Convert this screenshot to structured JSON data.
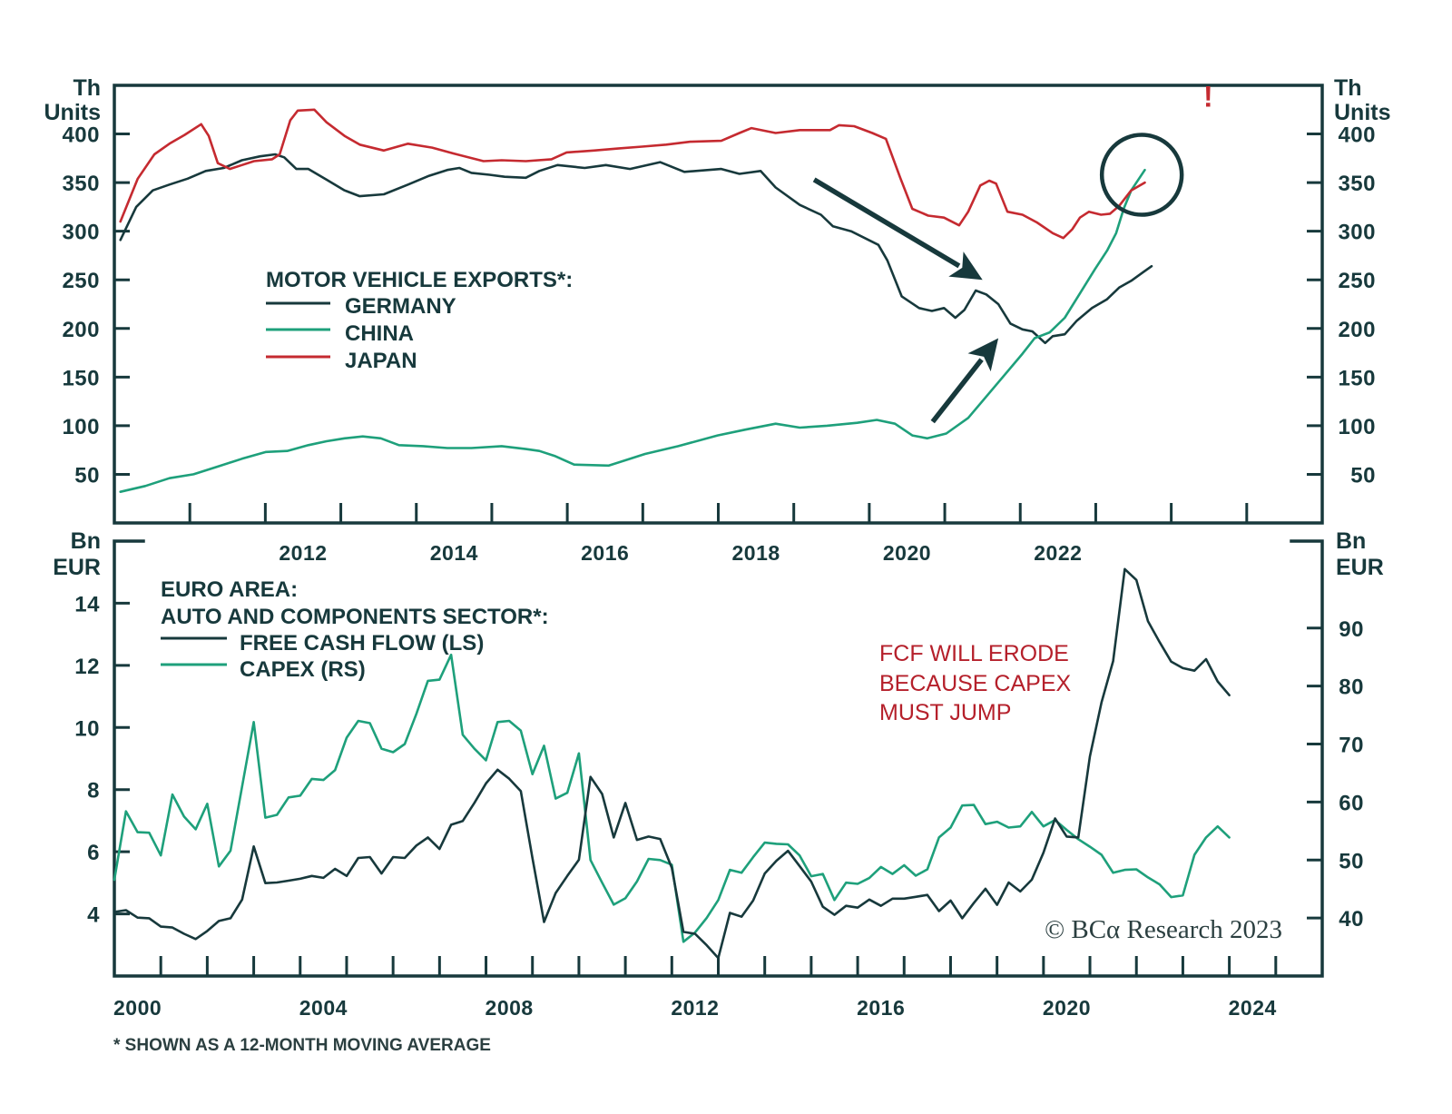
{
  "chart_data": [
    {
      "type": "line",
      "panel": "top",
      "title": "MOTOR VEHICLE EXPORTS*:",
      "ylabel_left": [
        "Th",
        "Units"
      ],
      "ylabel_right": [
        "Th",
        "Units"
      ],
      "xlabel": "",
      "xlim": [
        2010,
        2026
      ],
      "ylim": [
        0,
        450
      ],
      "yticks": [
        50,
        100,
        150,
        200,
        250,
        300,
        350,
        400
      ],
      "xticks": [
        2011,
        2012,
        2013,
        2014,
        2015,
        2016,
        2017,
        2018,
        2019,
        2020,
        2021,
        2022,
        2023,
        2024,
        2025
      ],
      "xticklabels": [
        "2012",
        "2014",
        "2016",
        "2018",
        "2020",
        "2022"
      ],
      "grid": false,
      "legend": "center-left",
      "series": [
        {
          "name": "GERMANY",
          "color": "#17393c",
          "points": [
            [
              2010.08,
              291
            ],
            [
              2010.29,
              325
            ],
            [
              2010.51,
              342
            ],
            [
              2010.73,
              348
            ],
            [
              2010.97,
              354
            ],
            [
              2011.21,
              362
            ],
            [
              2011.45,
              365
            ],
            [
              2011.69,
              373
            ],
            [
              2011.93,
              377
            ],
            [
              2012.13,
              379
            ],
            [
              2012.25,
              376
            ],
            [
              2012.41,
              364
            ],
            [
              2012.57,
              364
            ],
            [
              2012.81,
              353
            ],
            [
              2013.05,
              342
            ],
            [
              2013.25,
              336
            ],
            [
              2013.57,
              338
            ],
            [
              2013.89,
              348
            ],
            [
              2014.17,
              357
            ],
            [
              2014.41,
              363
            ],
            [
              2014.57,
              365
            ],
            [
              2014.73,
              360
            ],
            [
              2014.97,
              358
            ],
            [
              2015.17,
              356
            ],
            [
              2015.45,
              355
            ],
            [
              2015.63,
              362
            ],
            [
              2015.87,
              368
            ],
            [
              2016.23,
              365
            ],
            [
              2016.51,
              368
            ],
            [
              2016.83,
              364
            ],
            [
              2017.23,
              371
            ],
            [
              2017.55,
              361
            ],
            [
              2018.04,
              364
            ],
            [
              2018.28,
              359
            ],
            [
              2018.56,
              362
            ],
            [
              2018.76,
              345
            ],
            [
              2019.08,
              327
            ],
            [
              2019.36,
              317
            ],
            [
              2019.52,
              305
            ],
            [
              2019.76,
              300
            ],
            [
              2020.12,
              286
            ],
            [
              2020.24,
              270
            ],
            [
              2020.43,
              233
            ],
            [
              2020.66,
              221
            ],
            [
              2020.83,
              218
            ],
            [
              2020.99,
              221
            ],
            [
              2021.14,
              211
            ],
            [
              2021.26,
              219
            ],
            [
              2021.41,
              239
            ],
            [
              2021.55,
              235
            ],
            [
              2021.71,
              225
            ],
            [
              2021.87,
              205
            ],
            [
              2022.03,
              199
            ],
            [
              2022.16,
              197
            ],
            [
              2022.33,
              185
            ],
            [
              2022.43,
              192
            ],
            [
              2022.59,
              194
            ],
            [
              2022.75,
              208
            ],
            [
              2022.95,
              221
            ],
            [
              2023.15,
              230
            ],
            [
              2023.31,
              242
            ],
            [
              2023.47,
              249
            ],
            [
              2023.63,
              258
            ],
            [
              2023.74,
              264
            ]
          ]
        },
        {
          "name": "CHINA",
          "color": "#1ea07b",
          "points": [
            [
              2010.08,
              32
            ],
            [
              2010.41,
              38
            ],
            [
              2010.73,
              46
            ],
            [
              2011.05,
              50
            ],
            [
              2011.37,
              58
            ],
            [
              2011.69,
              66
            ],
            [
              2012.01,
              73
            ],
            [
              2012.29,
              74
            ],
            [
              2012.57,
              80
            ],
            [
              2012.81,
              84
            ],
            [
              2013.05,
              87
            ],
            [
              2013.29,
              89
            ],
            [
              2013.53,
              87
            ],
            [
              2013.77,
              80
            ],
            [
              2014.09,
              79
            ],
            [
              2014.41,
              77
            ],
            [
              2014.73,
              77
            ],
            [
              2015.13,
              79
            ],
            [
              2015.45,
              76
            ],
            [
              2015.63,
              74
            ],
            [
              2015.83,
              69
            ],
            [
              2016.09,
              60
            ],
            [
              2016.55,
              59
            ],
            [
              2017.03,
              71
            ],
            [
              2017.47,
              79
            ],
            [
              2017.99,
              90
            ],
            [
              2018.36,
              96
            ],
            [
              2018.76,
              102
            ],
            [
              2019.08,
              98
            ],
            [
              2019.44,
              100
            ],
            [
              2019.84,
              103
            ],
            [
              2020.1,
              106
            ],
            [
              2020.34,
              102
            ],
            [
              2020.57,
              90
            ],
            [
              2020.77,
              87
            ],
            [
              2021.02,
              92
            ],
            [
              2021.31,
              108
            ],
            [
              2021.55,
              130
            ],
            [
              2021.79,
              152
            ],
            [
              2022.03,
              174
            ],
            [
              2022.19,
              190
            ],
            [
              2022.39,
              196
            ],
            [
              2022.59,
              211
            ],
            [
              2022.79,
              236
            ],
            [
              2022.99,
              261
            ],
            [
              2023.15,
              280
            ],
            [
              2023.27,
              298
            ],
            [
              2023.37,
              323
            ],
            [
              2023.47,
              342
            ],
            [
              2023.65,
              363
            ]
          ]
        },
        {
          "name": "JAPAN",
          "color": "#c52a30",
          "points": [
            [
              2010.08,
              310
            ],
            [
              2010.31,
              354
            ],
            [
              2010.53,
              379
            ],
            [
              2010.73,
              390
            ],
            [
              2010.93,
              399
            ],
            [
              2011.15,
              410
            ],
            [
              2011.25,
              398
            ],
            [
              2011.37,
              370
            ],
            [
              2011.53,
              364
            ],
            [
              2011.69,
              368
            ],
            [
              2011.85,
              372
            ],
            [
              2012.09,
              374
            ],
            [
              2012.19,
              379
            ],
            [
              2012.33,
              414
            ],
            [
              2012.43,
              424
            ],
            [
              2012.65,
              425
            ],
            [
              2012.81,
              412
            ],
            [
              2013.05,
              398
            ],
            [
              2013.25,
              389
            ],
            [
              2013.57,
              383
            ],
            [
              2013.89,
              390
            ],
            [
              2014.21,
              386
            ],
            [
              2014.49,
              380
            ],
            [
              2014.89,
              372
            ],
            [
              2015.13,
              373
            ],
            [
              2015.45,
              372
            ],
            [
              2015.79,
              374
            ],
            [
              2015.99,
              381
            ],
            [
              2016.35,
              383
            ],
            [
              2016.67,
              385
            ],
            [
              2016.99,
              387
            ],
            [
              2017.31,
              389
            ],
            [
              2017.63,
              392
            ],
            [
              2018.04,
              393
            ],
            [
              2018.28,
              401
            ],
            [
              2018.44,
              406
            ],
            [
              2018.76,
              401
            ],
            [
              2019.08,
              404
            ],
            [
              2019.48,
              404
            ],
            [
              2019.6,
              409
            ],
            [
              2019.8,
              408
            ],
            [
              2020.04,
              401
            ],
            [
              2020.22,
              395
            ],
            [
              2020.41,
              355
            ],
            [
              2020.57,
              323
            ],
            [
              2020.78,
              316
            ],
            [
              2020.99,
              314
            ],
            [
              2021.19,
              306
            ],
            [
              2021.31,
              320
            ],
            [
              2021.47,
              347
            ],
            [
              2021.59,
              352
            ],
            [
              2021.68,
              349
            ],
            [
              2021.83,
              320
            ],
            [
              2022.03,
              317
            ],
            [
              2022.22,
              309
            ],
            [
              2022.43,
              298
            ],
            [
              2022.57,
              293
            ],
            [
              2022.69,
              302
            ],
            [
              2022.79,
              314
            ],
            [
              2022.91,
              320
            ],
            [
              2023.07,
              317
            ],
            [
              2023.19,
              318
            ],
            [
              2023.31,
              326
            ],
            [
              2023.47,
              342
            ],
            [
              2023.65,
              350
            ]
          ]
        }
      ],
      "annotations": {
        "exclamation": "!",
        "exclamation_color": "#c52a30",
        "arrows": [
          "germany-decline-arrow",
          "china-rise-arrow"
        ],
        "highlight": "china-overtakes-japan-circle"
      }
    },
    {
      "type": "line",
      "panel": "bottom",
      "title": [
        "EURO AREA:",
        "AUTO AND COMPONENTS SECTOR*:"
      ],
      "ylabel_left": [
        "Bn",
        "EUR"
      ],
      "ylabel_right": [
        "Bn",
        "EUR"
      ],
      "xlabel": "",
      "xlim": [
        2000,
        2026
      ],
      "ylim_left": [
        2,
        16
      ],
      "ylim_right": [
        30,
        105
      ],
      "yticks_left": [
        4,
        6,
        8,
        10,
        12,
        14
      ],
      "yticks_right": [
        40,
        50,
        60,
        70,
        80,
        90
      ],
      "xticks": [
        2001,
        2002,
        2003,
        2004,
        2005,
        2006,
        2007,
        2008,
        2009,
        2010,
        2011,
        2012,
        2013,
        2014,
        2015,
        2016,
        2017,
        2018,
        2019,
        2020,
        2021,
        2022,
        2023,
        2024,
        2025
      ],
      "xticklabels": [
        "2000",
        "2004",
        "2008",
        "2012",
        "2016",
        "2020",
        "2024"
      ],
      "grid": false,
      "legend": "top-left",
      "series": [
        {
          "name": "FREE CASH FLOW (LS)",
          "axis": "left",
          "color": "#17393c",
          "start": 2000,
          "step": 0.25,
          "values": [
            4.06,
            4.12,
            3.88,
            3.86,
            3.59,
            3.56,
            3.36,
            3.19,
            3.45,
            3.77,
            3.86,
            4.46,
            6.17,
            4.99,
            5.01,
            5.07,
            5.13,
            5.22,
            5.16,
            5.45,
            5.22,
            5.8,
            5.83,
            5.3,
            5.83,
            5.8,
            6.2,
            6.46,
            6.09,
            6.87,
            6.99,
            7.57,
            8.2,
            8.64,
            8.35,
            7.95,
            5.8,
            3.74,
            4.67,
            5.22,
            5.74,
            8.41,
            7.86,
            6.46,
            7.57,
            6.38,
            6.49,
            6.41,
            5.48,
            3.42,
            3.36,
            2.99,
            2.58,
            4.03,
            3.91,
            4.43,
            5.3,
            5.71,
            6.03,
            5.54,
            5.04,
            4.23,
            3.97,
            4.26,
            4.2,
            4.46,
            4.26,
            4.49,
            4.49,
            4.55,
            4.61,
            4.09,
            4.43,
            3.86,
            4.35,
            4.81,
            4.29,
            5.01,
            4.72,
            5.1,
            5.97,
            7.07,
            6.49,
            6.46,
            9.07,
            10.81,
            12.14,
            15.1,
            14.75,
            13.42,
            12.75,
            12.12,
            11.91,
            11.83,
            12.2,
            11.48,
            11.04
          ]
        },
        {
          "name": "CAPEX (RS)",
          "axis": "right",
          "color": "#1ea07b",
          "start": 2000,
          "step": 0.25,
          "values": [
            46.6,
            58.4,
            54.8,
            54.7,
            50.8,
            61.3,
            57.5,
            55.3,
            59.7,
            48.9,
            51.6,
            62.7,
            73.8,
            57.3,
            57.8,
            60.8,
            61.1,
            64.0,
            63.8,
            65.5,
            71.1,
            74.0,
            73.6,
            69.2,
            68.6,
            70.0,
            75.2,
            80.9,
            81.1,
            85.4,
            71.6,
            69.2,
            67.2,
            73.8,
            74.0,
            72.3,
            64.8,
            69.7,
            60.6,
            61.6,
            68.4,
            50.0,
            46.1,
            42.3,
            43.4,
            46.3,
            50.2,
            50.0,
            49.2,
            35.9,
            37.5,
            40.0,
            43.1,
            48.3,
            47.8,
            50.5,
            53.0,
            52.8,
            52.7,
            50.8,
            47.2,
            47.6,
            43.1,
            46.1,
            45.9,
            46.9,
            48.8,
            47.6,
            49.1,
            47.3,
            48.4,
            53.9,
            55.6,
            59.4,
            59.5,
            56.2,
            56.6,
            55.6,
            55.8,
            58.3,
            55.8,
            56.9,
            55.2,
            53.6,
            52.3,
            50.9,
            47.8,
            48.3,
            48.4,
            47.0,
            45.8,
            43.6,
            43.9,
            50.9,
            53.9,
            55.8,
            53.9
          ]
        }
      ],
      "annotation": [
        "FCF WILL ERODE",
        "BECAUSE CAPEX",
        "MUST JUMP"
      ],
      "annotation_color": "#b5202b"
    }
  ],
  "footnote": "* SHOWN AS A 12-MONTH MOVING AVERAGE",
  "copyright": "© BCα Research 2023",
  "colors": {
    "axis": "#17393c",
    "green": "#1ea07b",
    "red": "#c52a30"
  }
}
